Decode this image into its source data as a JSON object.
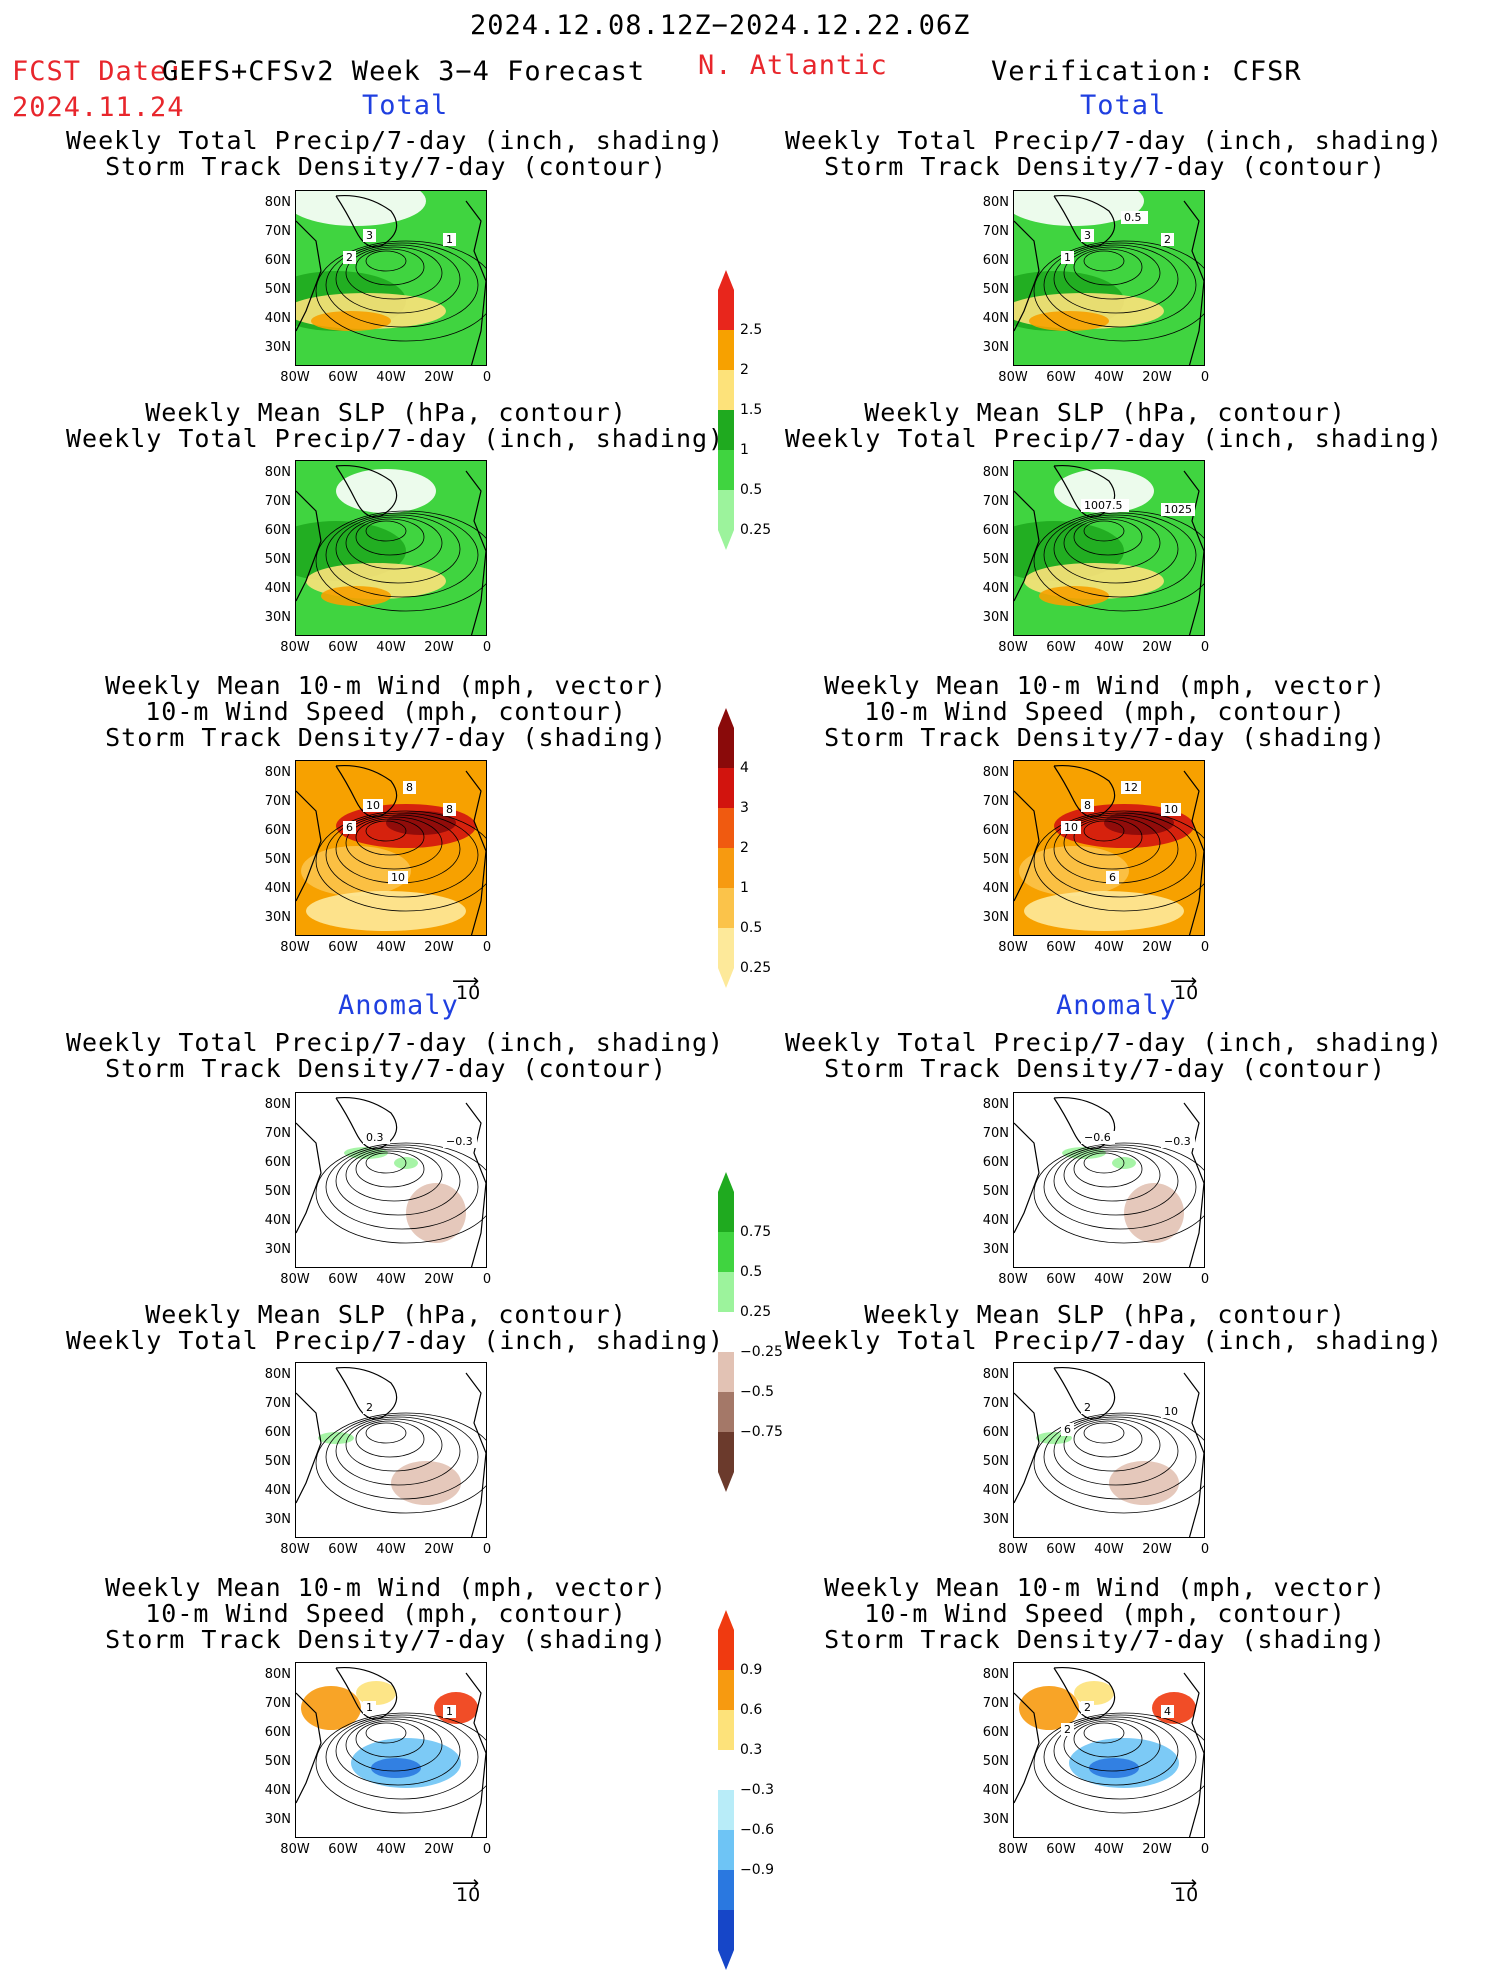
{
  "header": {
    "period": "2024.12.08.12Z−2024.12.22.06Z",
    "fcst_label": "FCST Date:",
    "fcst_model": "GEFS+CFSv2 Week 3−4 Forecast",
    "fcst_date": "2024.11.24",
    "region": "N. Atlantic",
    "verification": "Verification: CFSR"
  },
  "sections": {
    "total": "Total",
    "anomaly": "Anomaly"
  },
  "titles": {
    "precip_storm": "Weekly Total Precip/7-day (inch, shading)\nStorm Track Density/7-day (contour)",
    "slp_precip": "Weekly Mean SLP (hPa, contour)\nWeekly Total Precip/7-day (inch, shading)",
    "wind_storm": "Weekly Mean 10-m Wind (mph, vector)\n10-m Wind Speed (mph, contour)\nStorm Track Density/7-day (shading)"
  },
  "axes": {
    "lat_labels": [
      "80N",
      "70N",
      "60N",
      "50N",
      "40N",
      "30N"
    ],
    "lon_labels": [
      "80W",
      "60W",
      "40W",
      "20W",
      "0"
    ]
  },
  "vector_ref": "10",
  "colorbars": [
    {
      "name": "total-precip",
      "labels": [
        "2.5",
        "2",
        "1.5",
        "1",
        "0.5",
        "0.25"
      ],
      "colors": [
        "#e8261c",
        "#f7a100",
        "#fde27a",
        "#1faa1f",
        "#40d440",
        "#9cf39c"
      ]
    },
    {
      "name": "total-storm",
      "labels": [
        "4",
        "3",
        "2",
        "1",
        "0.5",
        "0.25"
      ],
      "colors": [
        "#8a0a0a",
        "#d2140e",
        "#f05a10",
        "#f79a10",
        "#fbc34a",
        "#fde99a"
      ]
    },
    {
      "name": "anom-precip",
      "labels": [
        "0.75",
        "0.5",
        "0.25",
        "−0.25",
        "−0.5",
        "−0.75"
      ],
      "colors": [
        "#1faa1f",
        "#40d440",
        "#9cf39c",
        "#ffffff",
        "#e2c2b4",
        "#a47868",
        "#6b3a2c"
      ]
    },
    {
      "name": "anom-storm",
      "labels": [
        "0.9",
        "0.6",
        "0.3",
        "−0.3",
        "−0.6",
        "−0.9"
      ],
      "colors": [
        "#f03a10",
        "#f79a10",
        "#fde27a",
        "#ffffff",
        "#b8ecf8",
        "#6ec4f5",
        "#2a78e0",
        "#1646c8"
      ]
    }
  ],
  "panels": [
    {
      "id": "fcst-total-precip",
      "contour_labels": [
        "3",
        "1",
        "2"
      ]
    },
    {
      "id": "fcst-total-slp",
      "contour_labels": []
    },
    {
      "id": "fcst-total-wind",
      "contour_labels": [
        "10",
        "8",
        "6",
        "8",
        "10"
      ]
    },
    {
      "id": "fcst-anom-precip",
      "contour_labels": [
        "0.3",
        "−0.3"
      ]
    },
    {
      "id": "fcst-anom-slp",
      "contour_labels": [
        "2"
      ]
    },
    {
      "id": "fcst-anom-wind",
      "contour_labels": [
        "1",
        "1"
      ]
    },
    {
      "id": "ver-total-precip",
      "contour_labels": [
        "3",
        "2",
        "1",
        "0.5"
      ]
    },
    {
      "id": "ver-total-slp",
      "contour_labels": [
        "1007.5",
        "1025"
      ]
    },
    {
      "id": "ver-total-wind",
      "contour_labels": [
        "8",
        "10",
        "10",
        "12",
        "6"
      ]
    },
    {
      "id": "ver-anom-precip",
      "contour_labels": [
        "−0.6",
        "−0.3"
      ]
    },
    {
      "id": "ver-anom-slp",
      "contour_labels": [
        "2",
        "10",
        "6"
      ]
    },
    {
      "id": "ver-anom-wind",
      "contour_labels": [
        "2",
        "4",
        "2"
      ]
    }
  ]
}
